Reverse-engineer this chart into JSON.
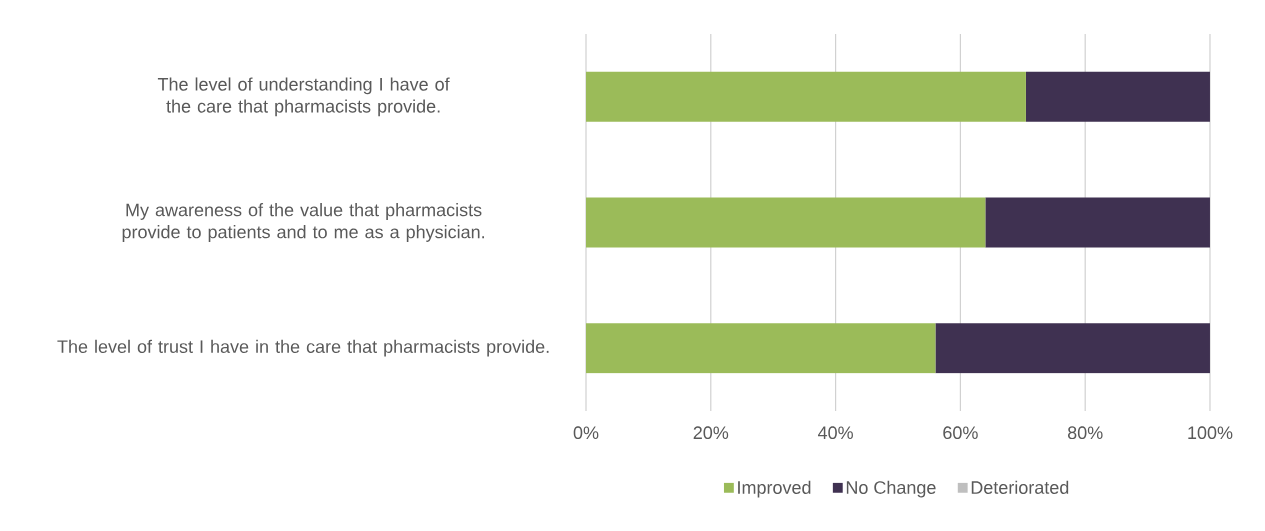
{
  "chart_data": {
    "type": "bar",
    "orientation": "horizontal",
    "stacked": true,
    "categories": [
      "The level of understanding I have of the care that pharmacists provide.",
      "My awareness of the value that pharmacists provide to patients and to me as a physician.",
      "The level of trust I have in the care that pharmacists provide."
    ],
    "series": [
      {
        "name": "Improved",
        "color": "#9bbb59",
        "values": [
          70.5,
          64,
          56
        ]
      },
      {
        "name": "No Change",
        "color": "#3f3151",
        "values": [
          29.5,
          36,
          44
        ]
      },
      {
        "name": "Deteriorated",
        "color": "#bfbfbf",
        "values": [
          0,
          0,
          0
        ]
      }
    ],
    "xlim": [
      0,
      100
    ],
    "xticks": [
      {
        "value": 0,
        "label": "0%"
      },
      {
        "value": 20,
        "label": "20%"
      },
      {
        "value": 40,
        "label": "40%"
      },
      {
        "value": 60,
        "label": "60%"
      },
      {
        "value": 80,
        "label": "80%"
      },
      {
        "value": 100,
        "label": "100%"
      }
    ],
    "grid": "x",
    "legend": "bottom"
  }
}
